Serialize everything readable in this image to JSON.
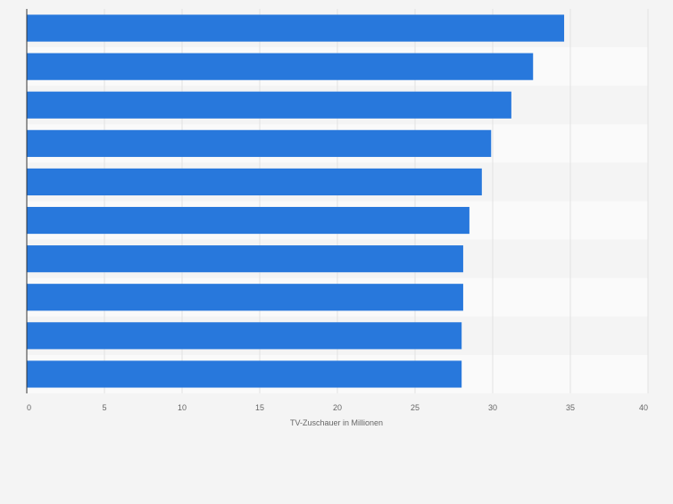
{
  "chart_data": {
    "type": "bar",
    "orientation": "horizontal",
    "categories": [
      "",
      "",
      "",
      "",
      "",
      "",
      "",
      "",
      "",
      ""
    ],
    "values": [
      34.6,
      32.6,
      31.2,
      29.9,
      29.3,
      28.5,
      28.1,
      28.1,
      28.0,
      28.0
    ],
    "title": "",
    "xlabel": "TV-Zuschauer in Millionen",
    "ylabel": "",
    "xlim": [
      0,
      40
    ],
    "x_ticks": [
      "0",
      "5",
      "10",
      "15",
      "20",
      "25",
      "30",
      "35",
      "40"
    ],
    "grid": true,
    "legend": "none",
    "bar_color": "#2878dc",
    "stripe_colors": [
      "#f4f4f4",
      "#fafafa"
    ],
    "background": "#f4f4f4"
  }
}
